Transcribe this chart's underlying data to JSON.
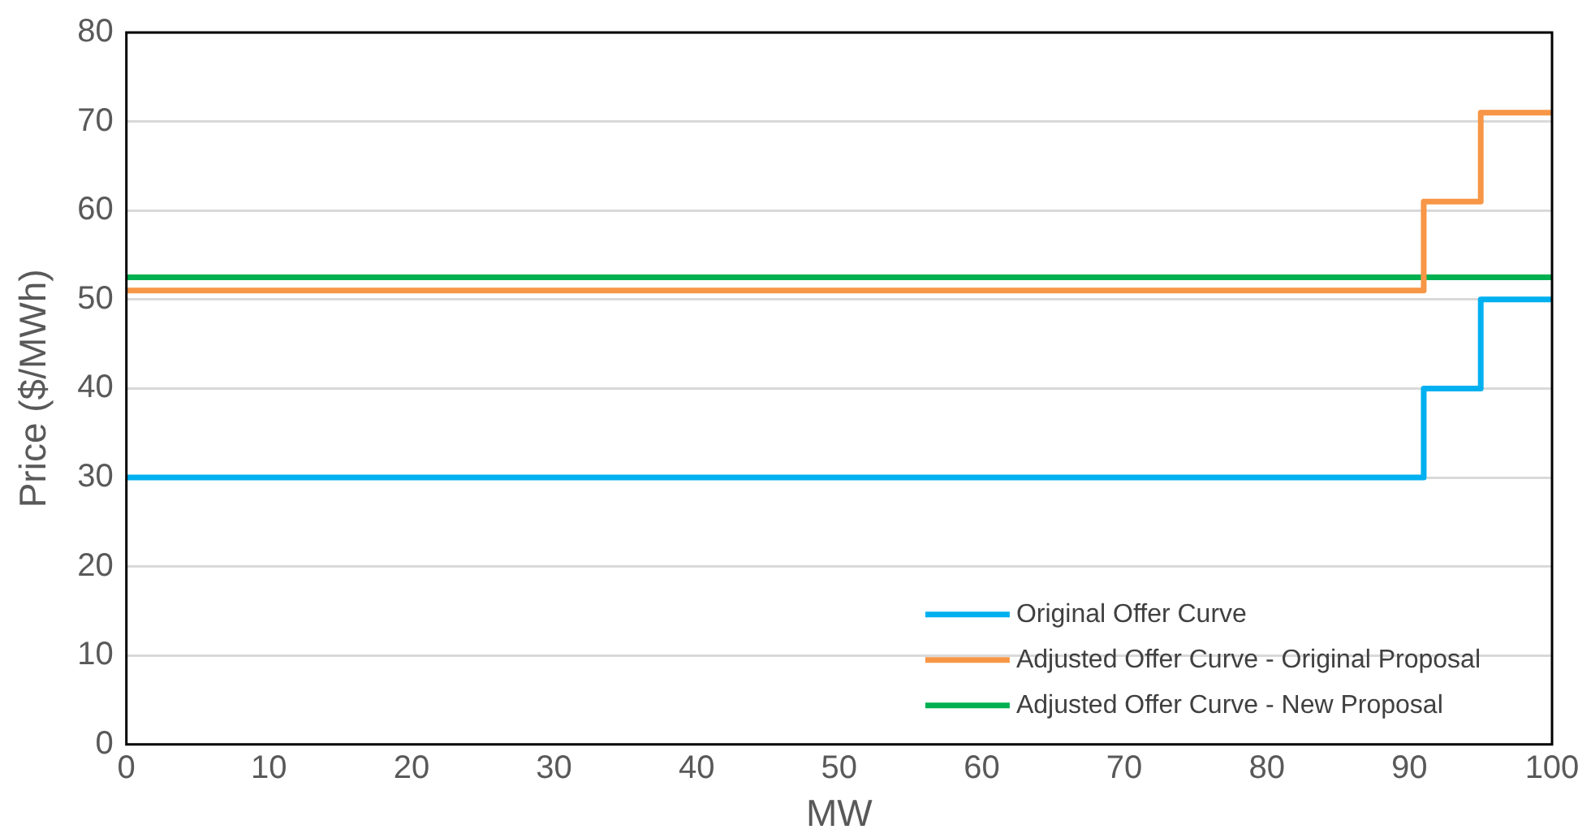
{
  "chart_data": {
    "type": "step",
    "xlabel": "MW",
    "ylabel": "Price ($/MWh)",
    "x": [
      0,
      91,
      95,
      100
    ],
    "series": [
      {
        "name": "Original Offer Curve",
        "color": "#00b0f0",
        "values": [
          30,
          40,
          50,
          50
        ]
      },
      {
        "name": "Adjusted Offer Curve - Original Proposal",
        "color": "#f79646",
        "values": [
          51,
          61,
          71,
          71
        ]
      },
      {
        "name": "Adjusted Offer Curve - New Proposal",
        "color": "#00b050",
        "values": [
          52.5,
          52.5,
          52.5,
          52.5
        ]
      }
    ],
    "xlim": [
      0,
      100
    ],
    "xticks": [
      0,
      10,
      20,
      30,
      40,
      50,
      60,
      70,
      80,
      90,
      100
    ],
    "ylim": [
      0,
      80
    ],
    "yticks": [
      0,
      10,
      20,
      30,
      40,
      50,
      60,
      70,
      80
    ],
    "grid": "y",
    "legend": "bottom right",
    "marker": "none",
    "line_style": "solid"
  }
}
